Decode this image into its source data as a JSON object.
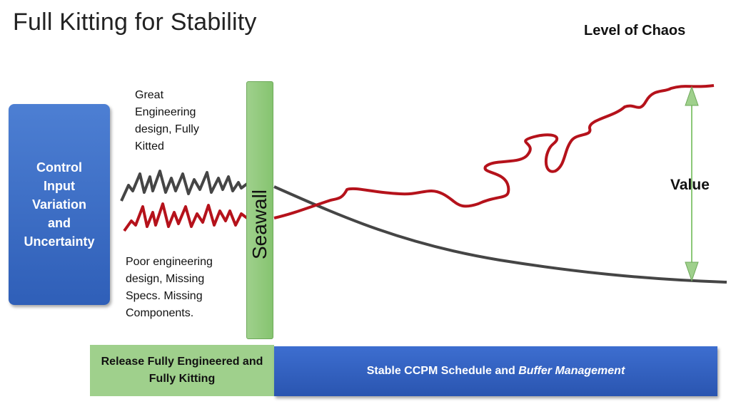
{
  "title": "Full Kitting for Stability",
  "chaos_label": "Level of Chaos",
  "control_box": {
    "text": "Control\nInput\nVariation\nand\nUncertainty"
  },
  "notes": {
    "great": "Great\nEngineering\ndesign, Fully\nKitted",
    "poor": "Poor engineering\ndesign, Missing\nSpecs. Missing\nComponents."
  },
  "seawall_label": "Seawall",
  "release_box": {
    "text": "Release Fully Engineered and\nFully Kitting"
  },
  "stable_box": {
    "text_plain": "Stable CCPM Schedule and ",
    "text_italic": "Buffer Management"
  },
  "value_label": "Value",
  "colors": {
    "chaos_line": "#b5121b",
    "stable_line": "#404040",
    "arrow": "#8cc878",
    "seawall": "#8cc878",
    "blue_box": "#3a68c4"
  }
}
